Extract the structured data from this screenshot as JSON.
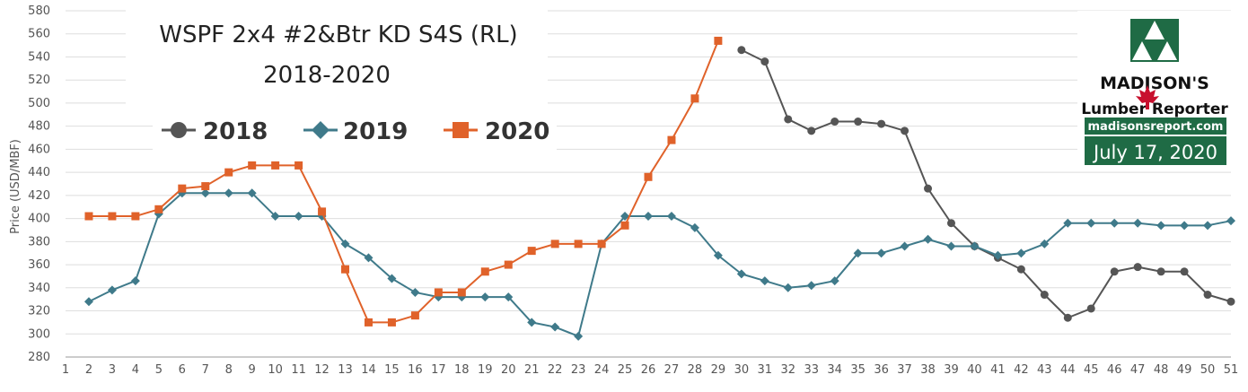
{
  "chart_data": {
    "type": "line",
    "title": "WSPF 2x4 #2&Btr KD S4S (RL)",
    "subtitle": "2018-2020",
    "ylabel": "Price (USD/MBF)",
    "xlabel": "",
    "xlim": [
      1,
      51
    ],
    "ylim": [
      280,
      580
    ],
    "yticks": [
      280,
      300,
      320,
      340,
      360,
      380,
      400,
      420,
      440,
      460,
      480,
      500,
      520,
      540,
      560,
      580
    ],
    "xticks": [
      1,
      2,
      3,
      4,
      5,
      6,
      7,
      8,
      9,
      10,
      11,
      12,
      13,
      14,
      15,
      16,
      17,
      18,
      19,
      20,
      21,
      22,
      23,
      24,
      25,
      26,
      27,
      28,
      29,
      30,
      31,
      32,
      33,
      34,
      35,
      36,
      37,
      38,
      39,
      40,
      41,
      42,
      43,
      44,
      45,
      46,
      47,
      48,
      49,
      50,
      51
    ],
    "grid": "horizontal",
    "legend_position": "top-left",
    "series": [
      {
        "name": "2018",
        "color": "#555555",
        "marker": "circle",
        "x": [
          30,
          31,
          32,
          33,
          34,
          35,
          36,
          37,
          38,
          39,
          40,
          41,
          42,
          43,
          44,
          45,
          46,
          47,
          48,
          49,
          50,
          51
        ],
        "values": [
          546,
          536,
          486,
          476,
          484,
          484,
          482,
          476,
          426,
          396,
          376,
          366,
          356,
          334,
          314,
          322,
          354,
          358,
          354,
          354,
          334,
          328
        ]
      },
      {
        "name": "2019",
        "color": "#3f7a8a",
        "marker": "diamond",
        "x": [
          2,
          3,
          4,
          5,
          6,
          7,
          8,
          9,
          10,
          11,
          12,
          13,
          14,
          15,
          16,
          17,
          18,
          19,
          20,
          21,
          22,
          23,
          24,
          25,
          26,
          27,
          28,
          29,
          30,
          31,
          32,
          33,
          34,
          35,
          36,
          37,
          38,
          39,
          40,
          41,
          42,
          43,
          44,
          45,
          46,
          47,
          48,
          49,
          50,
          51
        ],
        "values": [
          328,
          338,
          346,
          404,
          422,
          422,
          422,
          422,
          402,
          402,
          402,
          378,
          366,
          348,
          336,
          332,
          332,
          332,
          332,
          310,
          306,
          298,
          378,
          402,
          402,
          402,
          392,
          368,
          352,
          346,
          340,
          342,
          346,
          370,
          370,
          376,
          382,
          376,
          376,
          368,
          370,
          378,
          396,
          396,
          396,
          396,
          394,
          394,
          394,
          398
        ]
      },
      {
        "name": "2020",
        "color": "#e0622a",
        "marker": "square",
        "x": [
          2,
          3,
          4,
          5,
          6,
          7,
          8,
          9,
          10,
          11,
          12,
          13,
          14,
          15,
          16,
          17,
          18,
          19,
          20,
          21,
          22,
          23,
          24,
          25,
          26,
          27,
          28,
          29
        ],
        "values": [
          402,
          402,
          402,
          408,
          426,
          428,
          440,
          446,
          446,
          446,
          406,
          356,
          310,
          310,
          316,
          336,
          336,
          354,
          360,
          372,
          378,
          378,
          378,
          394,
          436,
          468,
          504,
          554
        ]
      }
    ]
  },
  "branding": {
    "name": "MADISON'S",
    "line2": "Lumber Reporter",
    "website": "madisonsreport.com",
    "date": "July 17, 2020",
    "logo_color": "#1f6b45",
    "leaf_color": "#c8102e"
  }
}
